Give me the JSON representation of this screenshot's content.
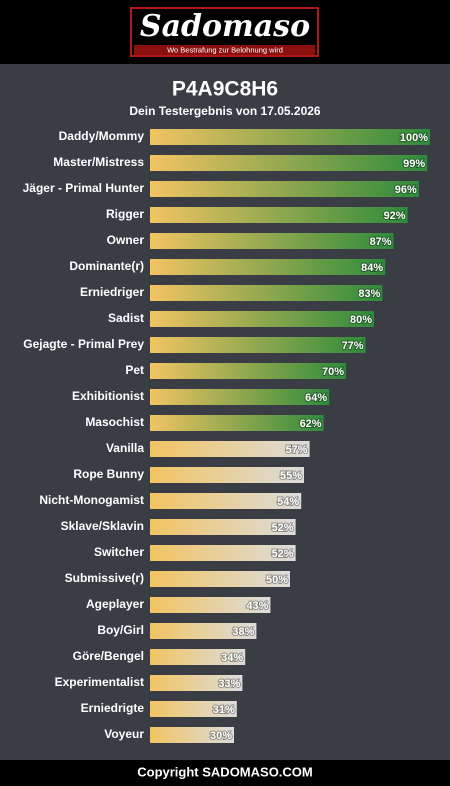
{
  "header": {
    "logo": "Sadomaso",
    "tagline": "Wo Bestrafung zur Belohnung wird"
  },
  "chart_data": {
    "type": "bar",
    "orientation": "horizontal",
    "title": "P4A9C8H6",
    "subtitle": "Dein Testergebnis von 17.05.2026",
    "categories": [
      "Daddy/Mommy",
      "Master/Mistress",
      "Jäger - Primal Hunter",
      "Rigger",
      "Owner",
      "Dominante(r)",
      "Erniedriger",
      "Sadist",
      "Gejagte - Primal Prey",
      "Pet",
      "Exhibitionist",
      "Masochist",
      "Vanilla",
      "Rope Bunny",
      "Nicht-Monogamist",
      "Sklave/Sklavin",
      "Switcher",
      "Submissive(r)",
      "Ageplayer",
      "Boy/Girl",
      "Göre/Bengel",
      "Experimentalist",
      "Erniedrigte",
      "Voyeur"
    ],
    "values": [
      100,
      99,
      96,
      92,
      87,
      84,
      83,
      80,
      77,
      70,
      64,
      62,
      57,
      55,
      54,
      52,
      52,
      50,
      43,
      38,
      34,
      33,
      31,
      30
    ],
    "value_labels": [
      "100%",
      "99%",
      "96%",
      "92%",
      "87%",
      "84%",
      "83%",
      "80%",
      "77%",
      "70%",
      "64%",
      "62%",
      "57%",
      "55%",
      "54%",
      "52%",
      "52%",
      "50%",
      "43%",
      "38%",
      "34%",
      "33%",
      "31%",
      "30%"
    ],
    "gradient_start": "#f2c462",
    "colors": [
      "#2e8b3c",
      "#2e8b3c",
      "#2e8b3c",
      "#2e8b3c",
      "#2e8b3c",
      "#2e8b3c",
      "#2e8b3c",
      "#2e8b3c",
      "#2e8b3c",
      "#2e8b3c",
      "#2e8b3c",
      "#2e8b3c",
      "#dcdcdc",
      "#dcdcdc",
      "#dcdcdc",
      "#dcdcdc",
      "#dcdcdc",
      "#dcdcdc",
      "#dcdcdc",
      "#dcdcdc",
      "#dcdcdc",
      "#dcdcdc",
      "#dcdcdc",
      "#dcdcdc"
    ],
    "xlim": [
      0,
      100
    ]
  },
  "footer": "Copyright SADOMASO.COM"
}
